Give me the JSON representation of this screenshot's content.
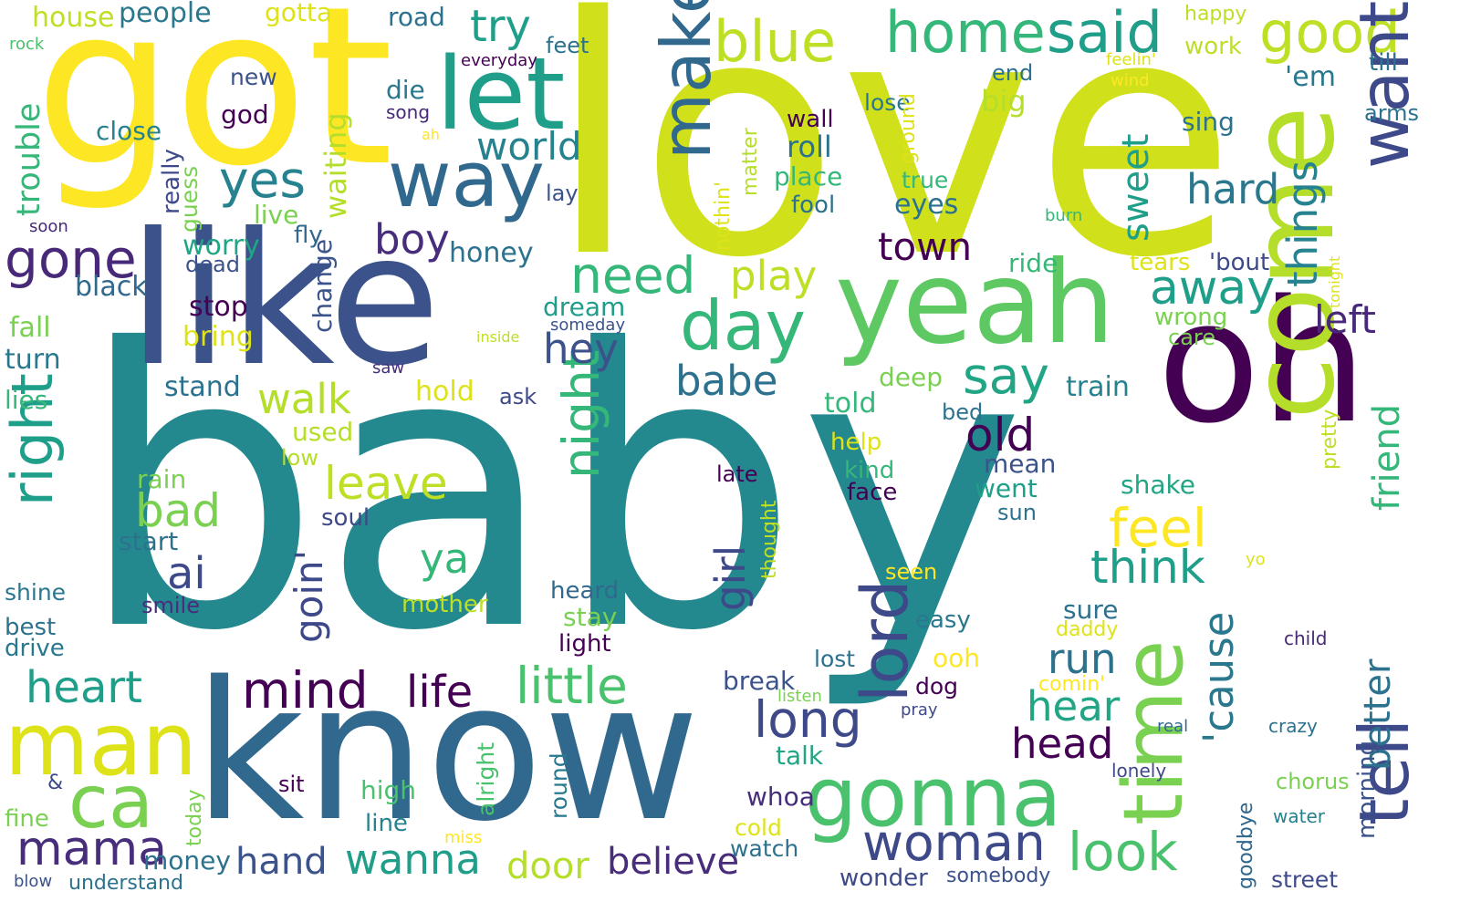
{
  "words": [
    {
      "text": "baby",
      "color": "#23898e"
    },
    {
      "text": "love",
      "color": "#d0e11c"
    },
    {
      "text": "got",
      "color": "#fde725"
    },
    {
      "text": "like",
      "color": "#3b528b"
    },
    {
      "text": "know",
      "color": "#31688e"
    },
    {
      "text": "oh",
      "color": "#440154"
    },
    {
      "text": "yeah",
      "color": "#5ec962"
    },
    {
      "text": "come",
      "color": "#b5de2b"
    },
    {
      "text": "let",
      "color": "#1f9e89"
    },
    {
      "text": "way",
      "color": "#31688e"
    },
    {
      "text": "make",
      "color": "#31688e"
    },
    {
      "text": "blue",
      "color": "#bddf26"
    },
    {
      "text": "home",
      "color": "#35b779"
    },
    {
      "text": "said",
      "color": "#1f9e89"
    },
    {
      "text": "good",
      "color": "#bddf26"
    },
    {
      "text": "want",
      "color": "#3e4989"
    },
    {
      "text": "try",
      "color": "#1f9e89"
    },
    {
      "text": "yes",
      "color": "#26828e"
    },
    {
      "text": "day",
      "color": "#35b779"
    },
    {
      "text": "time",
      "color": "#7ad151"
    },
    {
      "text": "tell",
      "color": "#3e4989"
    },
    {
      "text": "gonna",
      "color": "#4ac16d"
    },
    {
      "text": "man",
      "color": "#dde318"
    },
    {
      "text": "ca",
      "color": "#7ad151"
    },
    {
      "text": "gone",
      "color": "#482878"
    },
    {
      "text": "right",
      "color": "#1f9e89"
    },
    {
      "text": "mama",
      "color": "#472d7b"
    },
    {
      "text": "need",
      "color": "#35b779"
    },
    {
      "text": "night",
      "color": "#35b779"
    },
    {
      "text": "lord",
      "color": "#3e4989"
    },
    {
      "text": "things",
      "color": "#26828e"
    },
    {
      "text": "world",
      "color": "#26828e"
    },
    {
      "text": "little",
      "color": "#4ac16d"
    },
    {
      "text": "heart",
      "color": "#1f9e89"
    },
    {
      "text": "mind",
      "color": "#440154"
    },
    {
      "text": "life",
      "color": "#440154"
    },
    {
      "text": "woman",
      "color": "#3e4989"
    },
    {
      "text": "look",
      "color": "#4ac16d"
    },
    {
      "text": "think",
      "color": "#1f9e89"
    },
    {
      "text": "feel",
      "color": "#fde725"
    },
    {
      "text": "say",
      "color": "#21a585"
    },
    {
      "text": "away",
      "color": "#1f9e89"
    },
    {
      "text": "hard",
      "color": "#2a788e"
    },
    {
      "text": "left",
      "color": "#482878"
    },
    {
      "text": "friend",
      "color": "#35b779"
    },
    {
      "text": "better",
      "color": "#2c728e"
    },
    {
      "text": "'cause",
      "color": "#2a788e"
    },
    {
      "text": "sweet",
      "color": "#1f9e89"
    },
    {
      "text": "play",
      "color": "#bddf26"
    },
    {
      "text": "hey",
      "color": "#3b528b"
    },
    {
      "text": "babe",
      "color": "#2c728e"
    },
    {
      "text": "boy",
      "color": "#472d7b"
    },
    {
      "text": "walk",
      "color": "#b5de2b"
    },
    {
      "text": "old",
      "color": "#440154"
    },
    {
      "text": "leave",
      "color": "#bddf26"
    },
    {
      "text": "bad",
      "color": "#7ad151"
    },
    {
      "text": "ai",
      "color": "#3e4989"
    },
    {
      "text": "ya",
      "color": "#35b779"
    },
    {
      "text": "girl",
      "color": "#3e4989"
    },
    {
      "text": "long",
      "color": "#3e4989"
    },
    {
      "text": "run",
      "color": "#2c728e"
    },
    {
      "text": "hear",
      "color": "#21a585"
    },
    {
      "text": "head",
      "color": "#440154"
    },
    {
      "text": "goin'",
      "color": "#3e4989"
    },
    {
      "text": "town",
      "color": "#440154"
    },
    {
      "text": "hand",
      "color": "#3b528b"
    },
    {
      "text": "wanna",
      "color": "#1f9e89"
    },
    {
      "text": "door",
      "color": "#b5de2b"
    },
    {
      "text": "believe",
      "color": "#472d7b"
    },
    {
      "text": "people",
      "color": "#2a788e"
    },
    {
      "text": "house",
      "color": "#bddf26"
    },
    {
      "text": "gotta",
      "color": "#dde318"
    },
    {
      "text": "road",
      "color": "#2c728e"
    },
    {
      "text": "feet",
      "color": "#2c728e"
    },
    {
      "text": "everyday",
      "color": "#440154"
    },
    {
      "text": "new",
      "color": "#3b528b"
    },
    {
      "text": "die",
      "color": "#2a788e"
    },
    {
      "text": "song",
      "color": "#482878"
    },
    {
      "text": "close",
      "color": "#26828e"
    },
    {
      "text": "god",
      "color": "#440154"
    },
    {
      "text": "ah",
      "color": "#fde725"
    },
    {
      "text": "rock",
      "color": "#4ac16d"
    },
    {
      "text": "trouble",
      "color": "#35b779"
    },
    {
      "text": "really",
      "color": "#3e4989"
    },
    {
      "text": "guess",
      "color": "#7ad151"
    },
    {
      "text": "waiting",
      "color": "#b5de2b"
    },
    {
      "text": "lay",
      "color": "#3b528b"
    },
    {
      "text": "soon",
      "color": "#482878"
    },
    {
      "text": "live",
      "color": "#7ad151"
    },
    {
      "text": "worry",
      "color": "#21a585"
    },
    {
      "text": "fly",
      "color": "#31688e"
    },
    {
      "text": "dead",
      "color": "#3b528b"
    },
    {
      "text": "honey",
      "color": "#2c728e"
    },
    {
      "text": "black",
      "color": "#31688e"
    },
    {
      "text": "change",
      "color": "#3b528b"
    },
    {
      "text": "stop",
      "color": "#440154"
    },
    {
      "text": "bring",
      "color": "#dde318"
    },
    {
      "text": "fall",
      "color": "#7ad151"
    },
    {
      "text": "turn",
      "color": "#2a788e"
    },
    {
      "text": "stand",
      "color": "#2c728e"
    },
    {
      "text": "lies",
      "color": "#35b779"
    },
    {
      "text": "hold",
      "color": "#dde318"
    },
    {
      "text": "ask",
      "color": "#3e4989"
    },
    {
      "text": "used",
      "color": "#b5de2b"
    },
    {
      "text": "low",
      "color": "#b5de2b"
    },
    {
      "text": "rain",
      "color": "#7ad151"
    },
    {
      "text": "soul",
      "color": "#3e4989"
    },
    {
      "text": "start",
      "color": "#2c728e"
    },
    {
      "text": "shine",
      "color": "#2a788e"
    },
    {
      "text": "smile",
      "color": "#472d7b"
    },
    {
      "text": "best",
      "color": "#2c728e"
    },
    {
      "text": "drive",
      "color": "#2a788e"
    },
    {
      "text": "mother",
      "color": "#bddf26"
    },
    {
      "text": "stay",
      "color": "#7ad151"
    },
    {
      "text": "light",
      "color": "#440154"
    },
    {
      "text": "heard",
      "color": "#31688e"
    },
    {
      "text": "dream",
      "color": "#1f9e89"
    },
    {
      "text": "someday",
      "color": "#3b528b"
    },
    {
      "text": "inside",
      "color": "#bddf26"
    },
    {
      "text": "saw",
      "color": "#472d7b"
    },
    {
      "text": "matter",
      "color": "#b5de2b"
    },
    {
      "text": "nothin'",
      "color": "#dde318"
    },
    {
      "text": "wall",
      "color": "#440154"
    },
    {
      "text": "roll",
      "color": "#2c728e"
    },
    {
      "text": "place",
      "color": "#35b779"
    },
    {
      "text": "fool",
      "color": "#2c728e"
    },
    {
      "text": "lose",
      "color": "#2a788e"
    },
    {
      "text": "ground",
      "color": "#dde318"
    },
    {
      "text": "true",
      "color": "#35b779"
    },
    {
      "text": "eyes",
      "color": "#2c728e"
    },
    {
      "text": "end",
      "color": "#2c728e"
    },
    {
      "text": "big",
      "color": "#b5de2b"
    },
    {
      "text": "burn",
      "color": "#35b779"
    },
    {
      "text": "happy",
      "color": "#bddf26"
    },
    {
      "text": "work",
      "color": "#bddf26"
    },
    {
      "text": "feelin'",
      "color": "#dde318"
    },
    {
      "text": "wind",
      "color": "#fde725"
    },
    {
      "text": "'em",
      "color": "#2a788e"
    },
    {
      "text": "till",
      "color": "#2c728e"
    },
    {
      "text": "sing",
      "color": "#2c728e"
    },
    {
      "text": "arms",
      "color": "#2c728e"
    },
    {
      "text": "tears",
      "color": "#dde318"
    },
    {
      "text": "'bout",
      "color": "#3e4989"
    },
    {
      "text": "tonight",
      "color": "#dde318"
    },
    {
      "text": "ride",
      "color": "#35b779"
    },
    {
      "text": "wrong",
      "color": "#7ad151"
    },
    {
      "text": "care",
      "color": "#7ad151"
    },
    {
      "text": "deep",
      "color": "#7ad151"
    },
    {
      "text": "train",
      "color": "#26828e"
    },
    {
      "text": "told",
      "color": "#35b779"
    },
    {
      "text": "bed",
      "color": "#2c728e"
    },
    {
      "text": "help",
      "color": "#dde318"
    },
    {
      "text": "pretty",
      "color": "#bddf26"
    },
    {
      "text": "mean",
      "color": "#3b528b"
    },
    {
      "text": "kind",
      "color": "#35b779"
    },
    {
      "text": "went",
      "color": "#1f9e89"
    },
    {
      "text": "late",
      "color": "#440154"
    },
    {
      "text": "face",
      "color": "#440154"
    },
    {
      "text": "shake",
      "color": "#21a585"
    },
    {
      "text": "sun",
      "color": "#2c728e"
    },
    {
      "text": "thought",
      "color": "#bddf26"
    },
    {
      "text": "seen",
      "color": "#fde725"
    },
    {
      "text": "yo",
      "color": "#dde318"
    },
    {
      "text": "easy",
      "color": "#2a788e"
    },
    {
      "text": "sure",
      "color": "#2c728e"
    },
    {
      "text": "daddy",
      "color": "#dde318"
    },
    {
      "text": "child",
      "color": "#482878"
    },
    {
      "text": "ooh",
      "color": "#fde725"
    },
    {
      "text": "lost",
      "color": "#2c728e"
    },
    {
      "text": "break",
      "color": "#3b528b"
    },
    {
      "text": "comin'",
      "color": "#fde725"
    },
    {
      "text": "dog",
      "color": "#440154"
    },
    {
      "text": "listen",
      "color": "#7ad151"
    },
    {
      "text": "pray",
      "color": "#3e4989"
    },
    {
      "text": "real",
      "color": "#31688e"
    },
    {
      "text": "crazy",
      "color": "#2c728e"
    },
    {
      "text": "morning",
      "color": "#3b528b"
    },
    {
      "text": "talk",
      "color": "#21a585"
    },
    {
      "text": "whoa",
      "color": "#472d7b"
    },
    {
      "text": "lonely",
      "color": "#3e4989"
    },
    {
      "text": "chorus",
      "color": "#7ad151"
    },
    {
      "text": "&",
      "color": "#3e4989"
    },
    {
      "text": "sit",
      "color": "#440154"
    },
    {
      "text": "high",
      "color": "#4ac16d"
    },
    {
      "text": "alright",
      "color": "#4ac16d"
    },
    {
      "text": "round",
      "color": "#2a788e"
    },
    {
      "text": "today",
      "color": "#7ad151"
    },
    {
      "text": "fine",
      "color": "#7ad151"
    },
    {
      "text": "line",
      "color": "#26828e"
    },
    {
      "text": "miss",
      "color": "#fde725"
    },
    {
      "text": "cold",
      "color": "#dde318"
    },
    {
      "text": "watch",
      "color": "#2c728e"
    },
    {
      "text": "goodbye",
      "color": "#31688e"
    },
    {
      "text": "water",
      "color": "#26828e"
    },
    {
      "text": "money",
      "color": "#2c728e"
    },
    {
      "text": "blow",
      "color": "#3b528b"
    },
    {
      "text": "understand",
      "color": "#2c728e"
    },
    {
      "text": "wonder",
      "color": "#3e4989"
    },
    {
      "text": "somebody",
      "color": "#3b528b"
    },
    {
      "text": "street",
      "color": "#3e4989"
    }
  ]
}
